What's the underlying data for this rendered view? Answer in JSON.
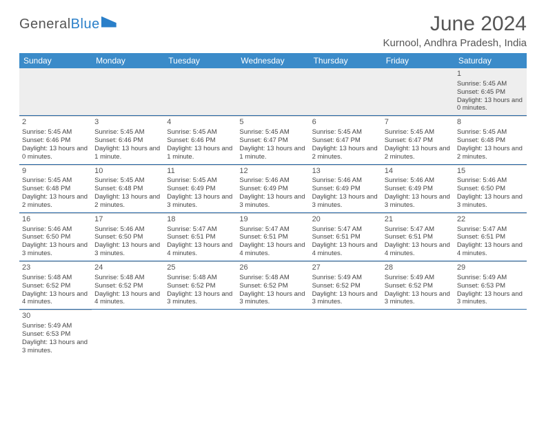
{
  "logo": {
    "part1": "General",
    "part2": "Blue"
  },
  "title": "June 2024",
  "subtitle": "Kurnool, Andhra Pradesh, India",
  "day_names": [
    "Sunday",
    "Monday",
    "Tuesday",
    "Wednesday",
    "Thursday",
    "Friday",
    "Saturday"
  ],
  "colors": {
    "header_bg": "#3b8bc9",
    "header_text": "#ffffff",
    "border": "#2a6aa8",
    "text": "#444444"
  },
  "weeks": [
    [
      null,
      null,
      null,
      null,
      null,
      null,
      {
        "n": "1",
        "sr": "5:45 AM",
        "ss": "6:45 PM",
        "dl": "13 hours and 0 minutes."
      }
    ],
    [
      {
        "n": "2",
        "sr": "5:45 AM",
        "ss": "6:46 PM",
        "dl": "13 hours and 0 minutes."
      },
      {
        "n": "3",
        "sr": "5:45 AM",
        "ss": "6:46 PM",
        "dl": "13 hours and 1 minute."
      },
      {
        "n": "4",
        "sr": "5:45 AM",
        "ss": "6:46 PM",
        "dl": "13 hours and 1 minute."
      },
      {
        "n": "5",
        "sr": "5:45 AM",
        "ss": "6:47 PM",
        "dl": "13 hours and 1 minute."
      },
      {
        "n": "6",
        "sr": "5:45 AM",
        "ss": "6:47 PM",
        "dl": "13 hours and 2 minutes."
      },
      {
        "n": "7",
        "sr": "5:45 AM",
        "ss": "6:47 PM",
        "dl": "13 hours and 2 minutes."
      },
      {
        "n": "8",
        "sr": "5:45 AM",
        "ss": "6:48 PM",
        "dl": "13 hours and 2 minutes."
      }
    ],
    [
      {
        "n": "9",
        "sr": "5:45 AM",
        "ss": "6:48 PM",
        "dl": "13 hours and 2 minutes."
      },
      {
        "n": "10",
        "sr": "5:45 AM",
        "ss": "6:48 PM",
        "dl": "13 hours and 2 minutes."
      },
      {
        "n": "11",
        "sr": "5:45 AM",
        "ss": "6:49 PM",
        "dl": "13 hours and 3 minutes."
      },
      {
        "n": "12",
        "sr": "5:46 AM",
        "ss": "6:49 PM",
        "dl": "13 hours and 3 minutes."
      },
      {
        "n": "13",
        "sr": "5:46 AM",
        "ss": "6:49 PM",
        "dl": "13 hours and 3 minutes."
      },
      {
        "n": "14",
        "sr": "5:46 AM",
        "ss": "6:49 PM",
        "dl": "13 hours and 3 minutes."
      },
      {
        "n": "15",
        "sr": "5:46 AM",
        "ss": "6:50 PM",
        "dl": "13 hours and 3 minutes."
      }
    ],
    [
      {
        "n": "16",
        "sr": "5:46 AM",
        "ss": "6:50 PM",
        "dl": "13 hours and 3 minutes."
      },
      {
        "n": "17",
        "sr": "5:46 AM",
        "ss": "6:50 PM",
        "dl": "13 hours and 3 minutes."
      },
      {
        "n": "18",
        "sr": "5:47 AM",
        "ss": "6:51 PM",
        "dl": "13 hours and 4 minutes."
      },
      {
        "n": "19",
        "sr": "5:47 AM",
        "ss": "6:51 PM",
        "dl": "13 hours and 4 minutes."
      },
      {
        "n": "20",
        "sr": "5:47 AM",
        "ss": "6:51 PM",
        "dl": "13 hours and 4 minutes."
      },
      {
        "n": "21",
        "sr": "5:47 AM",
        "ss": "6:51 PM",
        "dl": "13 hours and 4 minutes."
      },
      {
        "n": "22",
        "sr": "5:47 AM",
        "ss": "6:51 PM",
        "dl": "13 hours and 4 minutes."
      }
    ],
    [
      {
        "n": "23",
        "sr": "5:48 AM",
        "ss": "6:52 PM",
        "dl": "13 hours and 4 minutes."
      },
      {
        "n": "24",
        "sr": "5:48 AM",
        "ss": "6:52 PM",
        "dl": "13 hours and 4 minutes."
      },
      {
        "n": "25",
        "sr": "5:48 AM",
        "ss": "6:52 PM",
        "dl": "13 hours and 3 minutes."
      },
      {
        "n": "26",
        "sr": "5:48 AM",
        "ss": "6:52 PM",
        "dl": "13 hours and 3 minutes."
      },
      {
        "n": "27",
        "sr": "5:49 AM",
        "ss": "6:52 PM",
        "dl": "13 hours and 3 minutes."
      },
      {
        "n": "28",
        "sr": "5:49 AM",
        "ss": "6:52 PM",
        "dl": "13 hours and 3 minutes."
      },
      {
        "n": "29",
        "sr": "5:49 AM",
        "ss": "6:53 PM",
        "dl": "13 hours and 3 minutes."
      }
    ],
    [
      {
        "n": "30",
        "sr": "5:49 AM",
        "ss": "6:53 PM",
        "dl": "13 hours and 3 minutes."
      },
      null,
      null,
      null,
      null,
      null,
      null
    ]
  ],
  "labels": {
    "sunrise": "Sunrise: ",
    "sunset": "Sunset: ",
    "daylight": "Daylight: "
  }
}
